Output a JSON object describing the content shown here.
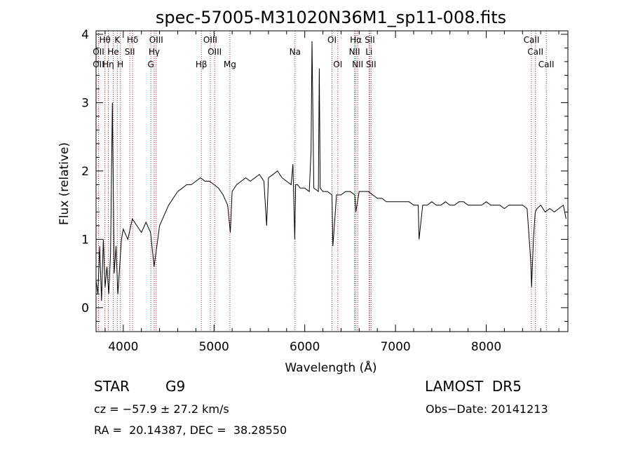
{
  "chart_data": {
    "type": "line",
    "title": "spec-57005-M31020N36M1_sp11-008.fits",
    "xlabel": "Wavelength (Å)",
    "ylabel": "Flux (relative)",
    "xlim": [
      3700,
      8900
    ],
    "ylim": [
      -0.35,
      4.05
    ],
    "x_ticks": [
      4000,
      5000,
      6000,
      7000,
      8000
    ],
    "y_ticks": [
      0,
      1,
      2,
      3,
      4
    ],
    "grid": false,
    "series_color": "#000000",
    "line_color": "#b22222",
    "spectral_lines": [
      {
        "label": "Hθ",
        "wl": 3798,
        "row": 0
      },
      {
        "label": "K",
        "wl": 3934,
        "row": 0
      },
      {
        "label": "Hδ",
        "wl": 4102,
        "row": 0
      },
      {
        "label": "OIII",
        "wl": 4363,
        "row": 0
      },
      {
        "label": "OIII",
        "wl": 4959,
        "row": 0
      },
      {
        "label": "OI",
        "wl": 6300,
        "row": 0
      },
      {
        "label": "Hα",
        "wl": 6563,
        "row": 0
      },
      {
        "label": "SII",
        "wl": 6717,
        "row": 0
      },
      {
        "label": "OII",
        "wl": 3727,
        "row": 1
      },
      {
        "label": "He",
        "wl": 3889,
        "row": 1
      },
      {
        "label": "SII",
        "wl": 4072,
        "row": 1
      },
      {
        "label": "Hγ",
        "wl": 4341,
        "row": 1
      },
      {
        "label": "OIII",
        "wl": 5007,
        "row": 1
      },
      {
        "label": "Na",
        "wl": 5893,
        "row": 1
      },
      {
        "label": "NII",
        "wl": 6548,
        "row": 1
      },
      {
        "label": "Li",
        "wl": 6708,
        "row": 1
      },
      {
        "label": "CaII",
        "wl": 8498,
        "row": 0
      },
      {
        "label": "CaII",
        "wl": 8542,
        "row": 1
      },
      {
        "label": "OII",
        "wl": 3727,
        "row": 2
      },
      {
        "label": "Hη",
        "wl": 3835,
        "row": 2
      },
      {
        "label": "H",
        "wl": 3968,
        "row": 2
      },
      {
        "label": "G",
        "wl": 4304,
        "row": 2
      },
      {
        "label": "Hβ",
        "wl": 4861,
        "row": 2
      },
      {
        "label": "Mg",
        "wl": 5175,
        "row": 2
      },
      {
        "label": "OI",
        "wl": 6364,
        "row": 2
      },
      {
        "label": "NII",
        "wl": 6583,
        "row": 2
      },
      {
        "label": "SII",
        "wl": 6731,
        "row": 2
      },
      {
        "label": "CaII",
        "wl": 8662,
        "row": 2
      }
    ],
    "series": [
      {
        "x": [
          3700,
          3720,
          3740,
          3760,
          3780,
          3800,
          3820,
          3840,
          3860,
          3880,
          3900,
          3920,
          3940,
          3960,
          3980,
          4000,
          4050,
          4100,
          4150,
          4200,
          4250,
          4300,
          4340,
          4400,
          4450,
          4500,
          4550,
          4600,
          4650,
          4700,
          4750,
          4800,
          4850,
          4900,
          4950,
          5000,
          5050,
          5100,
          5150,
          5180,
          5200,
          5250,
          5300,
          5350,
          5400,
          5450,
          5500,
          5550,
          5580,
          5600,
          5650,
          5700,
          5750,
          5800,
          5850,
          5870,
          5890,
          5900,
          5920,
          5950,
          6000,
          6050,
          6070,
          6080,
          6100,
          6150,
          6160,
          6170,
          6200,
          6250,
          6300,
          6310,
          6350,
          6400,
          6450,
          6500,
          6550,
          6563,
          6600,
          6650,
          6700,
          6750,
          6800,
          6850,
          6900,
          6950,
          7000,
          7050,
          7100,
          7150,
          7200,
          7250,
          7260,
          7300,
          7350,
          7400,
          7450,
          7500,
          7550,
          7600,
          7650,
          7700,
          7750,
          7800,
          7850,
          7900,
          7950,
          8000,
          8050,
          8100,
          8150,
          8200,
          8250,
          8300,
          8350,
          8400,
          8450,
          8490,
          8500,
          8520,
          8540,
          8560,
          8600,
          8650,
          8700,
          8750,
          8800,
          8850,
          8880
        ],
        "y": [
          0.4,
          0.2,
          0.9,
          0.1,
          1.0,
          0.3,
          0.6,
          0.2,
          0.8,
          3.0,
          0.5,
          0.9,
          0.2,
          0.6,
          1.0,
          1.15,
          1.0,
          1.3,
          1.2,
          1.1,
          1.25,
          1.1,
          0.6,
          1.2,
          1.35,
          1.5,
          1.6,
          1.7,
          1.75,
          1.8,
          1.8,
          1.85,
          1.9,
          1.85,
          1.85,
          1.8,
          1.75,
          1.65,
          1.5,
          1.1,
          1.7,
          1.8,
          1.85,
          1.9,
          1.85,
          1.9,
          1.95,
          1.85,
          1.2,
          1.9,
          1.95,
          2.0,
          1.9,
          1.85,
          1.8,
          2.1,
          1.0,
          1.8,
          1.8,
          1.75,
          1.75,
          1.7,
          2.3,
          3.9,
          1.75,
          1.7,
          3.5,
          1.75,
          1.7,
          1.7,
          1.65,
          0.9,
          1.65,
          1.65,
          1.7,
          1.7,
          1.65,
          1.4,
          1.7,
          1.7,
          1.7,
          1.65,
          1.6,
          1.6,
          1.55,
          1.55,
          1.55,
          1.55,
          1.55,
          1.55,
          1.5,
          1.5,
          1.0,
          1.5,
          1.5,
          1.55,
          1.5,
          1.5,
          1.55,
          1.5,
          1.5,
          1.55,
          1.55,
          1.5,
          1.5,
          1.5,
          1.5,
          1.55,
          1.5,
          1.5,
          1.5,
          1.45,
          1.5,
          1.5,
          1.5,
          1.5,
          1.45,
          0.7,
          0.3,
          1.0,
          1.4,
          1.45,
          1.5,
          1.4,
          1.45,
          1.4,
          1.45,
          1.5,
          1.3
        ]
      }
    ]
  },
  "info": {
    "object_class": "STAR",
    "subclass": "G9",
    "survey": "LAMOST  DR5",
    "cz": "cz = −57.9 ± 27.2 km/s",
    "obs_date": "Obs−Date: 20141213",
    "coords": "RA =  20.14387, DEC =  38.28550"
  }
}
